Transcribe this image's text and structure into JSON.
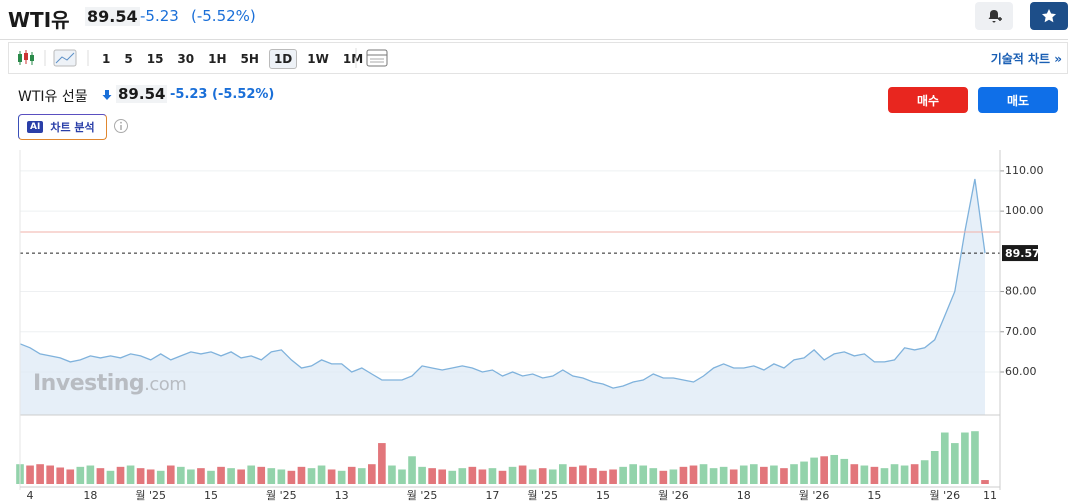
{
  "header": {
    "title": "WTI유",
    "price": "89.54",
    "change": "-5.23",
    "change_pct": "(-5.52%)"
  },
  "toolbar": {
    "intervals": [
      "1",
      "5",
      "15",
      "30",
      "1H",
      "5H",
      "1D",
      "1W",
      "1M"
    ],
    "selected_interval": 6,
    "technical": "기술적 차트 »"
  },
  "instrument": {
    "name": "WTI유 선물",
    "price": "89.54",
    "change": "-5.23",
    "change_pct": "(-5.52%)"
  },
  "buttons": {
    "buy": "매수",
    "sell": "매도"
  },
  "ai": {
    "badge": "AI",
    "label": "차트 분석"
  },
  "watermark": {
    "brand": "Investing",
    "suffix": ".com"
  },
  "chart_data": {
    "type": "area",
    "categories": [
      null,
      "4",
      null,
      null,
      null,
      null,
      null,
      "18",
      null,
      null,
      null,
      null,
      null,
      "월 '25",
      null,
      null,
      null,
      null,
      null,
      "15",
      null,
      null,
      null,
      null,
      null,
      null,
      "월 '25",
      null,
      null,
      null,
      null,
      null,
      "13",
      null,
      null,
      null,
      null,
      null,
      null,
      null,
      "월 '25",
      null,
      null,
      null,
      null,
      null,
      null,
      "17",
      null,
      null,
      null,
      null,
      "월 '25",
      null,
      null,
      null,
      null,
      null,
      "15",
      null,
      null,
      null,
      null,
      null,
      null,
      "월 '26",
      null,
      null,
      null,
      null,
      null,
      null,
      "18",
      null,
      null,
      null,
      null,
      null,
      null,
      "월 '26",
      null,
      null,
      null,
      null,
      null,
      "15",
      null,
      null,
      null,
      null,
      null,
      null,
      "월 '26",
      null,
      null,
      null,
      "11"
    ],
    "series": [
      {
        "name": "WTI유",
        "color": "#7fb2dc",
        "values": [
          67,
          66,
          64.5,
          64,
          63.5,
          62.5,
          63,
          64,
          63.5,
          64,
          63.5,
          64.5,
          64,
          63,
          64.5,
          63,
          64,
          65,
          64.5,
          65,
          64,
          65,
          63.5,
          64,
          63,
          65,
          65.5,
          63,
          61,
          61.5,
          63,
          62,
          62,
          60,
          61,
          59.5,
          58,
          58,
          58,
          59,
          61.5,
          61,
          60.5,
          61,
          61.5,
          61,
          60,
          60.5,
          59,
          60,
          59,
          59.5,
          58.5,
          59,
          60.5,
          59,
          58.5,
          57.5,
          57,
          56,
          56.5,
          57.5,
          58,
          59.5,
          58.5,
          58.5,
          58,
          57.5,
          59,
          61,
          62,
          61,
          61,
          61.5,
          60.5,
          62,
          61,
          63,
          63.5,
          65.5,
          63,
          64.5,
          65,
          64,
          64.5,
          62.5,
          62.5,
          63,
          66,
          65.5,
          66,
          68,
          74,
          80,
          95,
          108,
          89.57
        ]
      },
      {
        "name": "거래량",
        "axis": "y2",
        "up_color": "#93d3ab",
        "down_color": "#e2767b",
        "values": [
          30,
          28,
          30,
          28,
          25,
          22,
          26,
          28,
          24,
          20,
          26,
          28,
          24,
          22,
          20,
          28,
          26,
          22,
          24,
          20,
          26,
          24,
          22,
          28,
          26,
          24,
          22,
          20,
          26,
          24,
          28,
          22,
          20,
          26,
          24,
          30,
          62,
          28,
          22,
          42,
          26,
          24,
          22,
          20,
          24,
          26,
          22,
          24,
          20,
          26,
          28,
          22,
          24,
          22,
          30,
          26,
          28,
          24,
          20,
          22,
          26,
          30,
          28,
          24,
          20,
          22,
          26,
          28,
          30,
          24,
          26,
          22,
          28,
          30,
          26,
          28,
          24,
          30,
          34,
          40,
          42,
          44,
          38,
          30,
          28,
          26,
          24,
          30,
          28,
          30,
          36,
          50,
          78,
          62,
          78,
          80,
          6
        ]
      }
    ],
    "ylim": [
      49.3,
      115.2
    ],
    "yticks": [
      {
        "value": 60,
        "label": "60.00"
      },
      {
        "value": 70,
        "label": "70.00"
      },
      {
        "value": 80,
        "label": "80.00"
      },
      {
        "value": 100,
        "label": "100.00"
      },
      {
        "value": 110,
        "label": "110.00"
      }
    ],
    "y2lim": [
      0,
      100
    ],
    "grid": true,
    "last_price": 89.57,
    "reference_line": 94.8
  }
}
